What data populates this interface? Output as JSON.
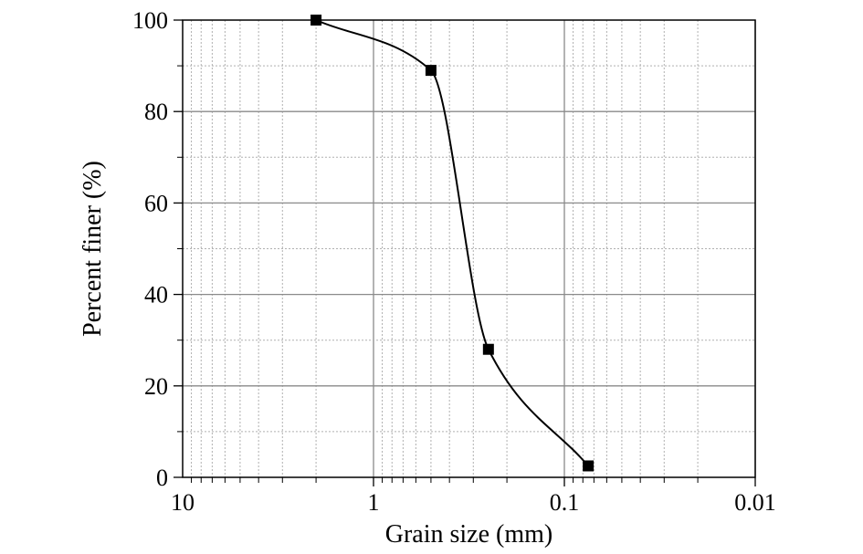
{
  "chart_data": {
    "type": "line",
    "x_scale": "log",
    "x_reversed": true,
    "xlim": [
      10,
      0.01
    ],
    "ylim": [
      0,
      100
    ],
    "xlabel": "Grain size (mm)",
    "ylabel": "Percent finer (%)",
    "x_ticks": [
      {
        "value": 10,
        "label": "10"
      },
      {
        "value": 1,
        "label": "1"
      },
      {
        "value": 0.1,
        "label": "0.1"
      },
      {
        "value": 0.01,
        "label": "0.01"
      }
    ],
    "y_ticks": [
      {
        "value": 0,
        "label": "0"
      },
      {
        "value": 20,
        "label": "20"
      },
      {
        "value": 40,
        "label": "40"
      },
      {
        "value": 60,
        "label": "60"
      },
      {
        "value": 80,
        "label": "80"
      },
      {
        "value": 100,
        "label": "100"
      }
    ],
    "grid": true,
    "marker": "square",
    "series": [
      {
        "points": [
          {
            "x": 2.0,
            "y": 100
          },
          {
            "x": 0.5,
            "y": 89
          },
          {
            "x": 0.25,
            "y": 28
          },
          {
            "x": 0.075,
            "y": 2.5
          }
        ]
      }
    ],
    "colors": {
      "line": "#000000",
      "grid": "#b0b0b0",
      "major_grid": "#8a8a8a",
      "frame": "#000000"
    }
  }
}
